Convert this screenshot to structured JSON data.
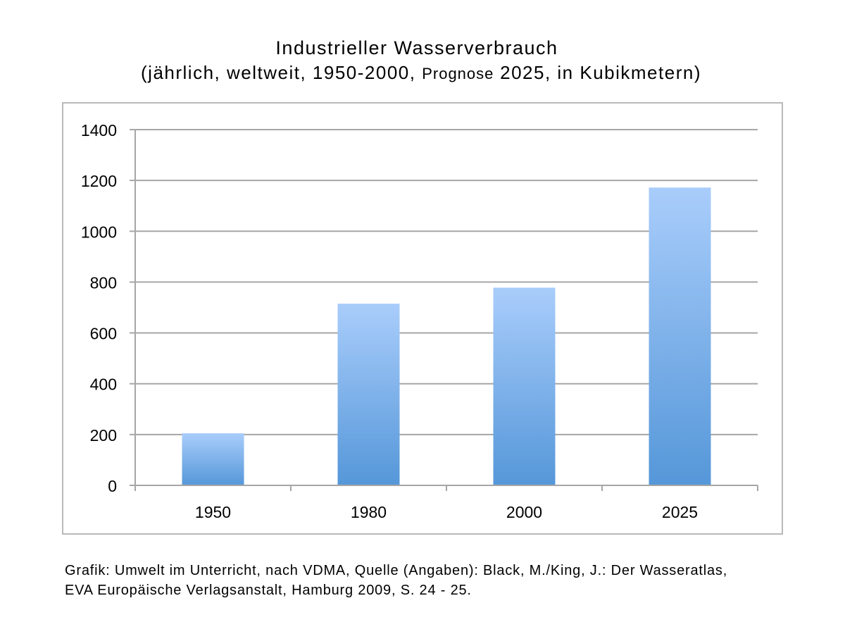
{
  "title_main": "Industrieller Wasserverbrauch",
  "subtitle": {
    "part1": "(jährlich, weltweit, 1950-2000, ",
    "part2": "Prognose",
    "part3": " 2025, in Kubikmetern)"
  },
  "source": {
    "line1": "Grafik: Umwelt im Unterricht, nach VDMA, Quelle (Angaben): Black, M./King, J.: Der Wasseratlas,",
    "line2": "EVA Europäische Verlagsanstalt, Hamburg 2009, S. 24 - 25."
  },
  "colors": {
    "bar_top": "#a9cdfb",
    "bar_bottom": "#5597d9",
    "grid": "#a6a6a6",
    "frame": "#b9b9b9"
  },
  "chart_data": {
    "type": "bar",
    "categories": [
      "1950",
      "1980",
      "2000",
      "2025"
    ],
    "values": [
      205,
      715,
      778,
      1172
    ],
    "ylim": [
      0,
      1400
    ],
    "yticks": [
      "0",
      "200",
      "400",
      "600",
      "800",
      "1000",
      "1200",
      "1400"
    ],
    "grid": true,
    "legend": "none",
    "xlabel": "",
    "ylabel": ""
  }
}
